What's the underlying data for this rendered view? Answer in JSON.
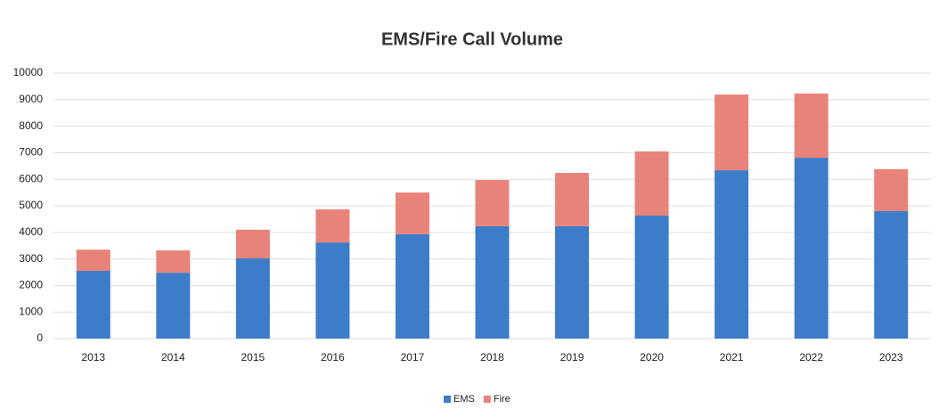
{
  "chart_data": {
    "type": "stacked_bar",
    "title": "EMS/Fire Call Volume",
    "categories": [
      "2013",
      "2014",
      "2015",
      "2016",
      "2017",
      "2018",
      "2019",
      "2020",
      "2021",
      "2022",
      "2023"
    ],
    "series": [
      {
        "name": "EMS",
        "color": "#3d7cc9",
        "values": [
          2550,
          2480,
          3020,
          3620,
          3930,
          4230,
          4230,
          4630,
          6340,
          6810,
          4800
        ]
      },
      {
        "name": "Fire",
        "color": "#e8837a",
        "values": [
          800,
          840,
          1080,
          1250,
          1570,
          1740,
          2010,
          2420,
          2850,
          2420,
          1580
        ]
      }
    ],
    "ylim": [
      0,
      10000
    ],
    "yticks": [
      0,
      1000,
      2000,
      3000,
      4000,
      5000,
      6000,
      7000,
      8000,
      9000,
      10000
    ],
    "grid": true,
    "legend": "bottom"
  }
}
